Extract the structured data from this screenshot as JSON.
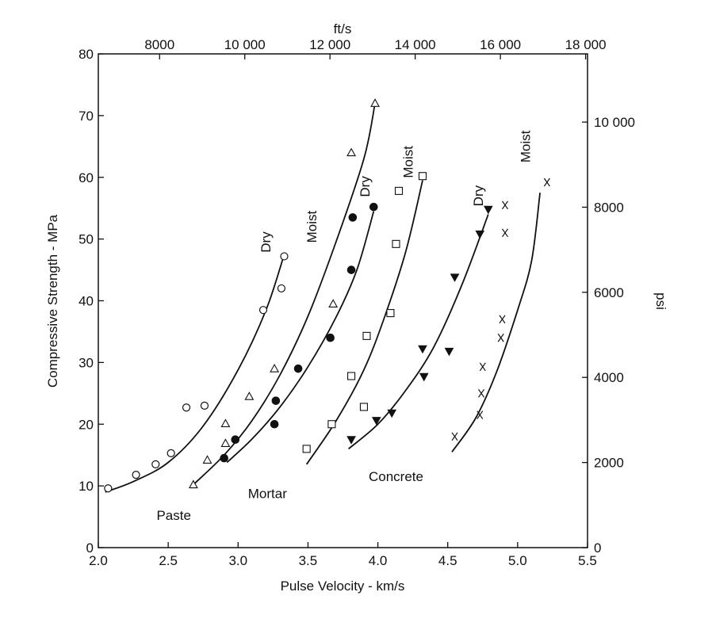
{
  "chart_data": {
    "type": "scatter",
    "title": "",
    "xlabel": "Pulse Velocity - km/s",
    "ylabel": "Compressive Strength - MPa",
    "x2label": "ft/s",
    "y2label": "psi",
    "xlim": [
      2.0,
      5.5
    ],
    "ylim": [
      0,
      80
    ],
    "x2lim": [
      6562,
      18045
    ],
    "y2lim": [
      0,
      11603
    ],
    "xticks": [
      2.0,
      2.5,
      3.0,
      3.5,
      4.0,
      4.5,
      5.0,
      5.5
    ],
    "xtick_labels": [
      "2.0",
      "2.5",
      "3.0",
      "3.5",
      "4.0",
      "4.5",
      "5.0",
      "5.5"
    ],
    "yticks": [
      0,
      10,
      20,
      30,
      40,
      50,
      60,
      70,
      80
    ],
    "ytick_labels": [
      "0",
      "10",
      "20",
      "30",
      "40",
      "50",
      "60",
      "70",
      "80"
    ],
    "x2ticks": [
      8000,
      10000,
      12000,
      14000,
      16000,
      18000
    ],
    "x2tick_labels": [
      "8000",
      "10 000",
      "12 000",
      "14 000",
      "16 000",
      "18 000"
    ],
    "y2ticks": [
      0,
      2000,
      4000,
      6000,
      8000,
      10000
    ],
    "y2tick_labels": [
      "0",
      "2000",
      "4000",
      "6000",
      "8000",
      "10 000"
    ],
    "grid": false,
    "legend": "none",
    "group_labels": [
      {
        "text": "Paste",
        "x": 2.54,
        "y": 4.5
      },
      {
        "text": "Mortar",
        "x": 3.21,
        "y": 8.0
      },
      {
        "text": "Concrete",
        "x": 4.13,
        "y": 10.8
      }
    ],
    "series": [
      {
        "label": "Dry",
        "marker": "circle-open",
        "label_x": 3.23,
        "label_y": 49.5,
        "label_rotate": -90,
        "points": [
          [
            2.07,
            9.6
          ],
          [
            2.27,
            11.8
          ],
          [
            2.41,
            13.5
          ],
          [
            2.52,
            15.3
          ],
          [
            2.63,
            22.7
          ],
          [
            2.76,
            23.0
          ],
          [
            3.18,
            38.5
          ],
          [
            3.31,
            42.0
          ],
          [
            3.33,
            47.2
          ]
        ],
        "curve": [
          [
            2.05,
            9.0
          ],
          [
            2.25,
            10.7
          ],
          [
            2.5,
            13.8
          ],
          [
            2.75,
            19.7
          ],
          [
            3.0,
            28.8
          ],
          [
            3.2,
            38.5
          ],
          [
            3.33,
            47.5
          ]
        ]
      },
      {
        "label": "Moist",
        "marker": "triangle-open",
        "label_x": 3.56,
        "label_y": 52.0,
        "label_rotate": -90,
        "points": [
          [
            2.68,
            10.2
          ],
          [
            2.78,
            14.2
          ],
          [
            2.91,
            20.1
          ],
          [
            2.91,
            16.9
          ],
          [
            3.08,
            24.5
          ],
          [
            3.26,
            29.0
          ],
          [
            3.68,
            39.5
          ],
          [
            3.81,
            64.0
          ],
          [
            3.98,
            72.0
          ]
        ],
        "curve": [
          [
            2.68,
            10.2
          ],
          [
            2.9,
            15.0
          ],
          [
            3.1,
            20.6
          ],
          [
            3.3,
            28.0
          ],
          [
            3.5,
            37.5
          ],
          [
            3.7,
            49.5
          ],
          [
            3.9,
            63.0
          ],
          [
            3.98,
            72.0
          ]
        ]
      },
      {
        "label": "Dry",
        "marker": "circle-filled",
        "label_x": 3.94,
        "label_y": 58.5,
        "label_rotate": -90,
        "points": [
          [
            2.9,
            14.5
          ],
          [
            2.98,
            17.5
          ],
          [
            3.26,
            20.0
          ],
          [
            3.27,
            23.8
          ],
          [
            3.43,
            29.0
          ],
          [
            3.66,
            34.0
          ],
          [
            3.81,
            45.0
          ],
          [
            3.82,
            53.5
          ],
          [
            3.97,
            55.2
          ]
        ],
        "curve": [
          [
            2.92,
            13.8
          ],
          [
            3.1,
            17.6
          ],
          [
            3.3,
            22.8
          ],
          [
            3.5,
            29.3
          ],
          [
            3.7,
            37.3
          ],
          [
            3.85,
            45.0
          ],
          [
            3.97,
            54.5
          ]
        ]
      },
      {
        "label": "Moist",
        "marker": "square-open",
        "label_x": 4.25,
        "label_y": 62.5,
        "label_rotate": -90,
        "points": [
          [
            3.49,
            16.0
          ],
          [
            3.67,
            20.0
          ],
          [
            3.81,
            27.8
          ],
          [
            3.9,
            22.8
          ],
          [
            3.92,
            34.3
          ],
          [
            4.09,
            38.0
          ],
          [
            4.13,
            49.2
          ],
          [
            4.15,
            57.8
          ],
          [
            4.32,
            60.2
          ]
        ],
        "curve": [
          [
            3.49,
            13.5
          ],
          [
            3.7,
            20.5
          ],
          [
            3.9,
            28.8
          ],
          [
            4.05,
            37.5
          ],
          [
            4.2,
            48.0
          ],
          [
            4.32,
            59.5
          ]
        ]
      },
      {
        "label": "Dry",
        "marker": "triangle-filled",
        "label_x": 4.75,
        "label_y": 57.0,
        "label_rotate": -90,
        "points": [
          [
            3.81,
            17.5
          ],
          [
            3.99,
            20.6
          ],
          [
            4.1,
            21.8
          ],
          [
            4.32,
            32.2
          ],
          [
            4.33,
            27.7
          ],
          [
            4.51,
            31.8
          ],
          [
            4.55,
            43.8
          ],
          [
            4.73,
            50.8
          ],
          [
            4.79,
            54.8
          ]
        ],
        "curve": [
          [
            3.79,
            16.0
          ],
          [
            4.0,
            20.0
          ],
          [
            4.2,
            25.5
          ],
          [
            4.4,
            32.5
          ],
          [
            4.6,
            42.5
          ],
          [
            4.79,
            54.0
          ]
        ]
      },
      {
        "label": "Moist",
        "marker": "x-symbol",
        "label_x": 5.09,
        "label_y": 65.0,
        "label_rotate": -90,
        "points": [
          [
            4.55,
            18.0
          ],
          [
            4.73,
            21.5
          ],
          [
            4.74,
            25.0
          ],
          [
            4.75,
            29.3
          ],
          [
            4.88,
            34.0
          ],
          [
            4.89,
            37.0
          ],
          [
            4.91,
            51.0
          ],
          [
            4.91,
            55.5
          ],
          [
            5.21,
            59.2
          ]
        ],
        "curve": [
          [
            4.53,
            15.5
          ],
          [
            4.7,
            21.0
          ],
          [
            4.85,
            28.5
          ],
          [
            5.0,
            38.5
          ],
          [
            5.1,
            46.5
          ],
          [
            5.16,
            57.5
          ]
        ]
      }
    ]
  }
}
